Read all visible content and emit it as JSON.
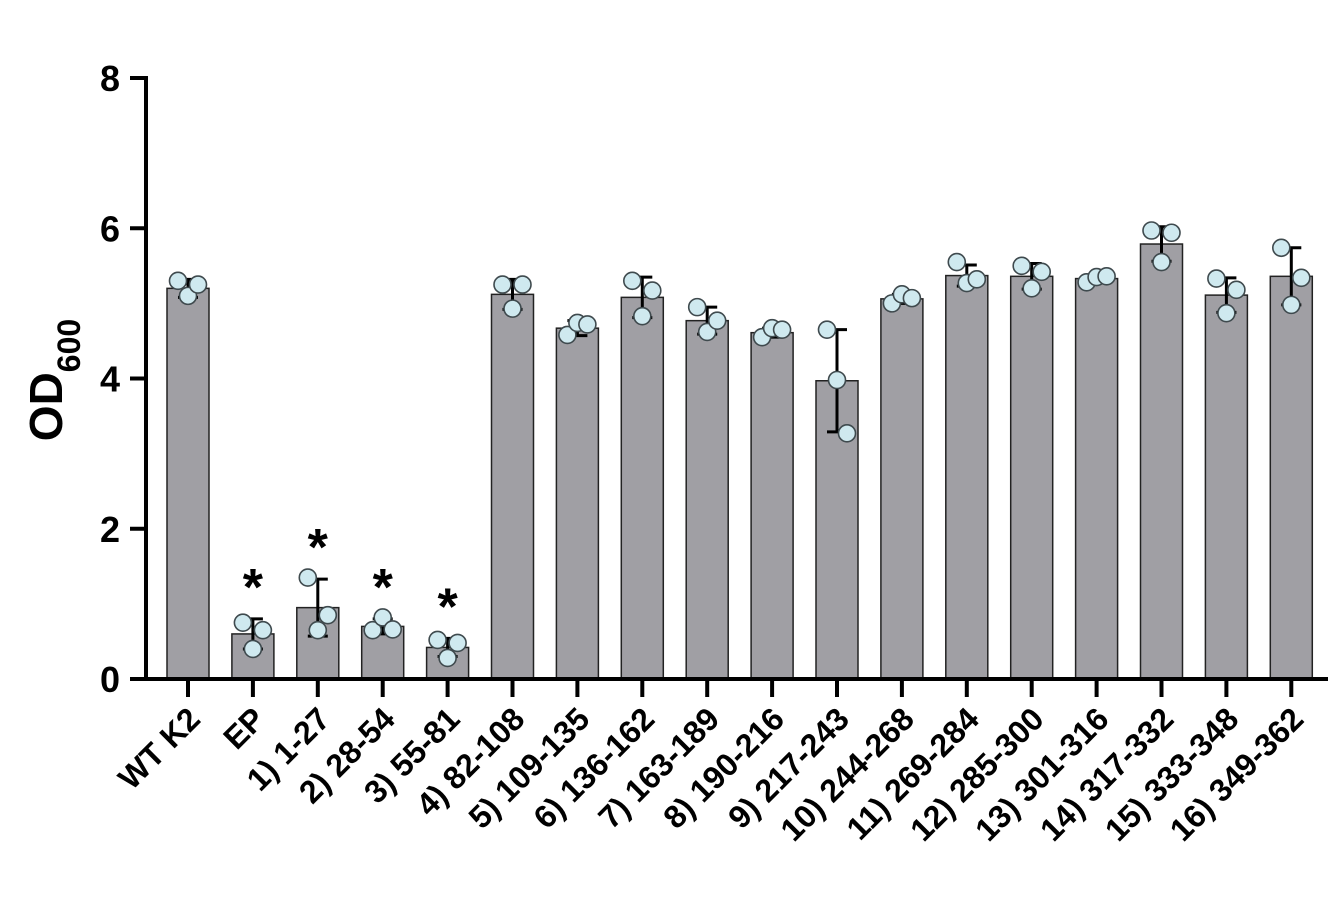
{
  "chart_data": {
    "type": "bar",
    "ylabel": "OD",
    "ylabel_sub": "600",
    "ylim": [
      0,
      8
    ],
    "yticks": [
      "0",
      "2",
      "4",
      "6",
      "8"
    ],
    "categories": [
      "WT K2",
      "EP",
      "1) 1-27",
      "2) 28-54",
      "3) 55-81",
      "4) 82-108",
      "5) 109-135",
      "6) 136-162",
      "7) 163-189",
      "8) 190-216",
      "9) 217-243",
      "10) 244-268",
      "11) 269-284",
      "12) 285-300",
      "13) 301-316",
      "14) 317-332",
      "15) 333-348",
      "16) 349-362"
    ],
    "values": [
      5.2,
      0.6,
      0.95,
      0.7,
      0.42,
      5.12,
      4.67,
      5.08,
      4.77,
      4.61,
      3.97,
      5.06,
      5.37,
      5.36,
      5.33,
      5.79,
      5.11,
      5.36
    ],
    "errors": [
      0.12,
      0.2,
      0.38,
      0.1,
      0.12,
      0.2,
      0.1,
      0.27,
      0.18,
      0.06,
      0.68,
      0.06,
      0.14,
      0.17,
      0.04,
      0.23,
      0.23,
      0.38
    ],
    "points": [
      [
        5.3,
        5.1,
        5.25
      ],
      [
        0.75,
        0.4,
        0.65
      ],
      [
        1.35,
        0.65,
        0.85
      ],
      [
        0.65,
        0.82,
        0.66
      ],
      [
        0.52,
        0.28,
        0.48
      ],
      [
        5.25,
        4.93,
        5.25
      ],
      [
        4.58,
        4.74,
        4.72
      ],
      [
        5.3,
        4.83,
        5.17
      ],
      [
        4.95,
        4.62,
        4.77
      ],
      [
        4.55,
        4.67,
        4.65
      ],
      [
        4.65,
        3.98,
        3.27
      ],
      [
        5.0,
        5.12,
        5.07
      ],
      [
        5.55,
        5.27,
        5.32
      ],
      [
        5.5,
        5.2,
        5.42
      ],
      [
        5.28,
        5.35,
        5.36
      ],
      [
        5.97,
        5.55,
        5.94
      ],
      [
        5.33,
        4.87,
        5.18
      ],
      [
        5.74,
        4.98,
        5.34
      ]
    ],
    "significance": [
      "",
      "*",
      "*",
      "*",
      "*",
      "",
      "",
      "",
      "",
      "",
      "",
      "",
      "",
      "",
      "",
      "",
      "",
      ""
    ],
    "colors": {
      "bar": "#a09fa4",
      "bar_edge": "#222222",
      "point_fill": "#cfe9ef",
      "point_edge": "#3f4a4e",
      "axis": "#000000"
    },
    "grid": false,
    "legend": "none"
  }
}
